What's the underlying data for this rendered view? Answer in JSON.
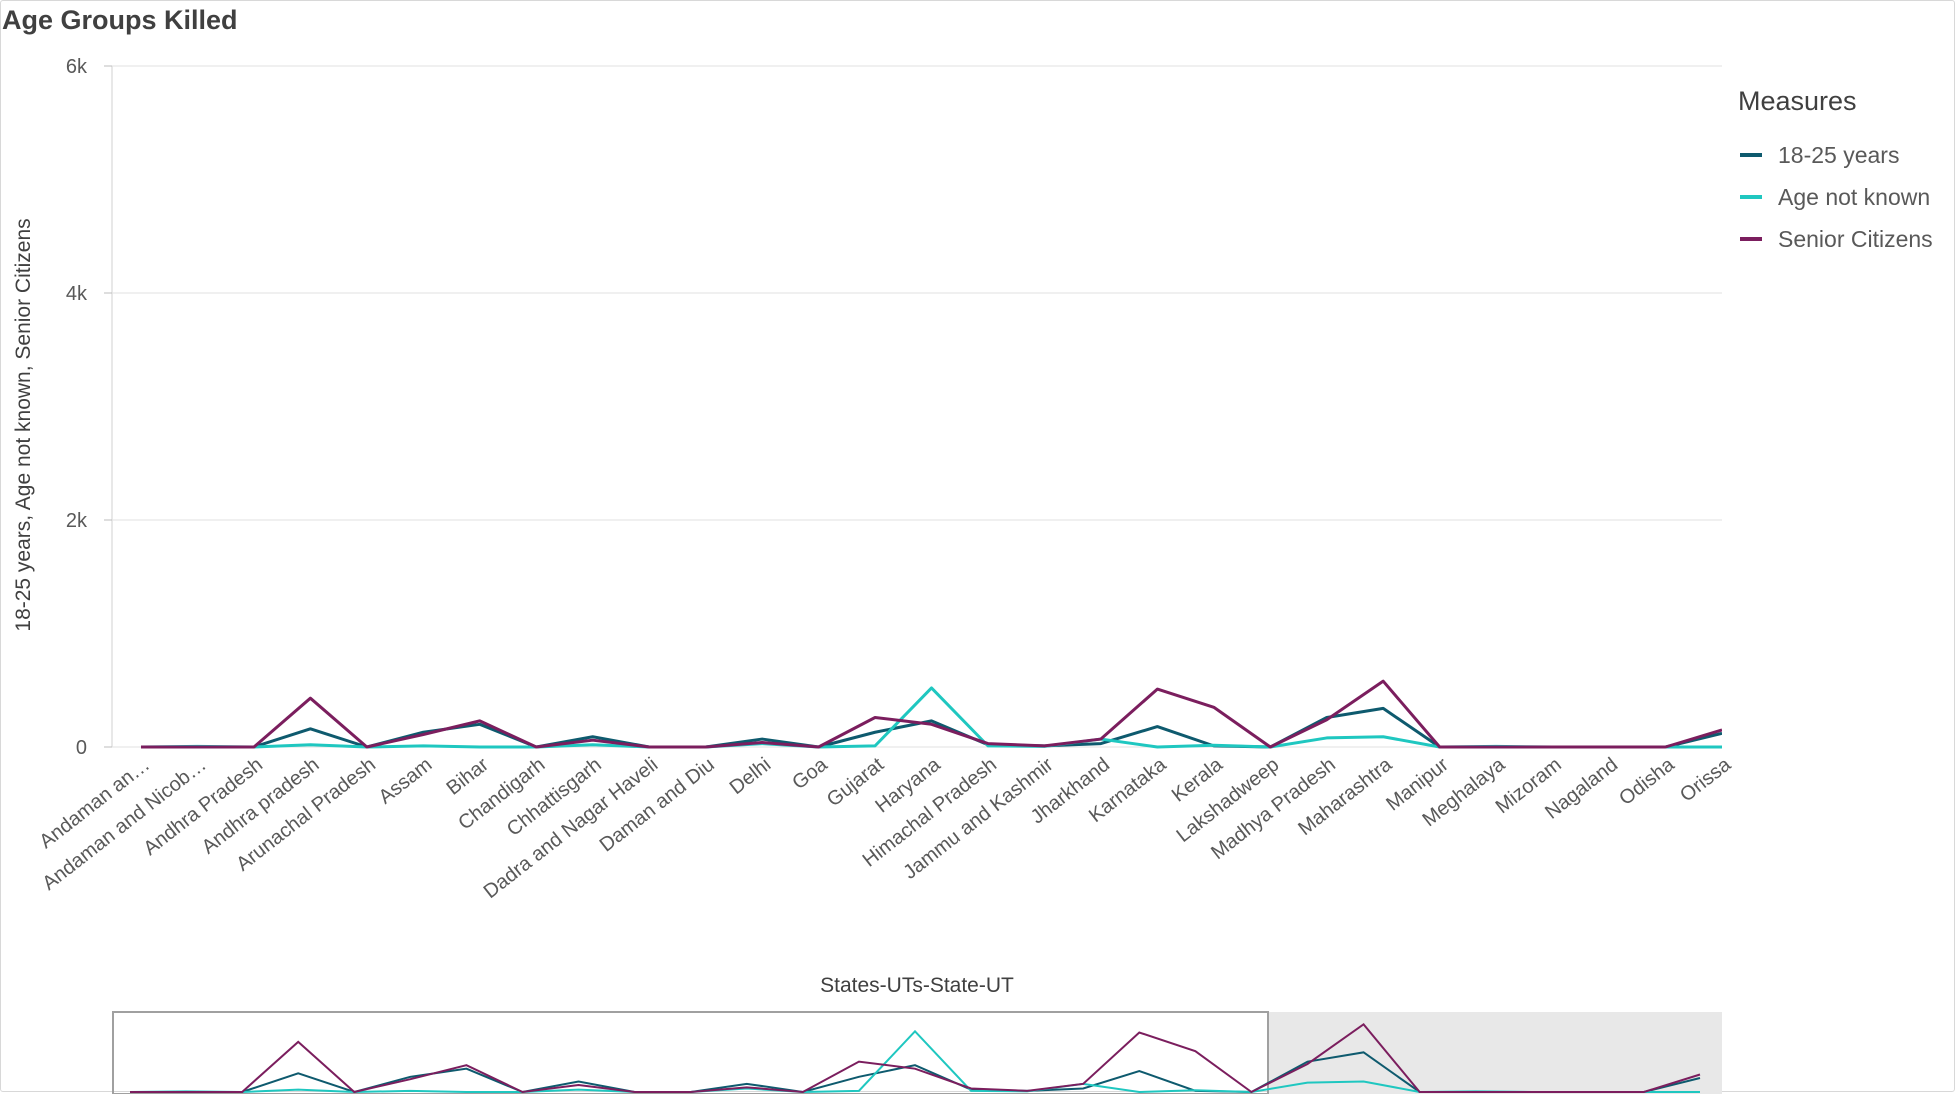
{
  "title": "Age Groups Killed",
  "legend": {
    "title": "Measures"
  },
  "chart_data": {
    "type": "line",
    "title": "Age Groups Killed",
    "xlabel": "States-UTs-State-UT",
    "ylabel": "18-25 years, Age not known, Senior Citizens",
    "ylim": [
      0,
      6000
    ],
    "yticks": [
      0,
      2000,
      4000,
      6000
    ],
    "ytick_labels": [
      "0",
      "2k",
      "4k",
      "6k"
    ],
    "grid": true,
    "legend_position": "right",
    "categories": [
      "Andaman an…",
      "Andaman and Nicob…",
      "Andhra Pradesh",
      "Andhra pradesh",
      "Arunachal Pradesh",
      "Assam",
      "Bihar",
      "Chandigarh",
      "Chhattisgarh",
      "Dadra and Nagar Haveli",
      "Daman and Diu",
      "Delhi",
      "Goa",
      "Gujarat",
      "Haryana",
      "Himachal Pradesh",
      "Jammu and Kashmir",
      "Jharkhand",
      "Karnataka",
      "Kerala",
      "Lakshadweep",
      "Madhya Pradesh",
      "Maharashtra",
      "Manipur",
      "Meghalaya",
      "Mizoram",
      "Nagaland",
      "Odisha",
      "Orissa"
    ],
    "series": [
      {
        "name": "18-25 years",
        "color": "#0e5a6e",
        "values": [
          0,
          0,
          0,
          160,
          0,
          130,
          200,
          0,
          90,
          0,
          0,
          70,
          0,
          130,
          230,
          20,
          10,
          30,
          180,
          10,
          0,
          260,
          340,
          0,
          0,
          0,
          0,
          0,
          120
        ]
      },
      {
        "name": "Age not known",
        "color": "#1fc7c0",
        "values": [
          0,
          5,
          0,
          20,
          0,
          10,
          0,
          0,
          20,
          0,
          0,
          30,
          0,
          10,
          520,
          10,
          5,
          70,
          0,
          15,
          0,
          80,
          90,
          0,
          5,
          0,
          0,
          0,
          0
        ]
      },
      {
        "name": "Senior Citizens",
        "color": "#7b1e5e",
        "values": [
          0,
          0,
          0,
          430,
          0,
          110,
          230,
          0,
          60,
          0,
          0,
          40,
          0,
          260,
          200,
          30,
          10,
          70,
          510,
          350,
          0,
          240,
          580,
          0,
          0,
          0,
          0,
          0,
          150
        ]
      }
    ]
  }
}
